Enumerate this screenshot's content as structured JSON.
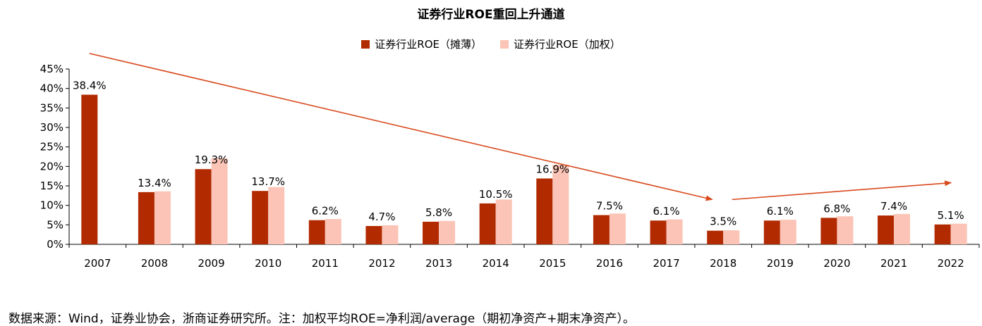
{
  "chart_data": {
    "type": "bar",
    "title": "证券行业ROE重回上升通道",
    "categories": [
      "2007",
      "2008",
      "2009",
      "2010",
      "2011",
      "2012",
      "2013",
      "2014",
      "2015",
      "2016",
      "2017",
      "2018",
      "2019",
      "2020",
      "2021",
      "2022"
    ],
    "series": [
      {
        "name": "证券行业ROE（摊薄）",
        "color": "#b22a00",
        "values": [
          38.4,
          13.4,
          19.3,
          13.7,
          6.2,
          4.7,
          5.8,
          10.5,
          16.9,
          7.5,
          6.1,
          3.5,
          6.1,
          6.8,
          7.4,
          5.1
        ]
      },
      {
        "name": "证券行业ROE（加权）",
        "color": "#fbc4b6",
        "values": [
          null,
          13.6,
          22.1,
          14.7,
          6.5,
          4.9,
          6.0,
          11.5,
          20.4,
          7.9,
          6.4,
          3.6,
          6.3,
          7.2,
          7.8,
          5.3
        ]
      }
    ],
    "data_labels": [
      "38.4%",
      "13.4%",
      "19.3%",
      "13.7%",
      "6.2%",
      "4.7%",
      "5.8%",
      "10.5%",
      "16.9%",
      "7.5%",
      "6.1%",
      "3.5%",
      "6.1%",
      "6.8%",
      "7.4%",
      "5.1%"
    ],
    "y_ticks": [
      "0%",
      "5%",
      "10%",
      "15%",
      "20%",
      "25%",
      "30%",
      "35%",
      "40%",
      "45%"
    ],
    "ylim": [
      0,
      45
    ],
    "xlabel": "",
    "ylabel": "",
    "legend_position": "top-center",
    "grid": false,
    "annotations": {
      "arrow_color": "#d84a1e",
      "trend_arrows": [
        {
          "from": [
            "2007",
            49.0
          ],
          "to": [
            "2018",
            11.5
          ]
        },
        {
          "from": [
            "2018",
            11.5
          ],
          "to": [
            "2022",
            15.8
          ]
        }
      ]
    }
  },
  "source_note": "数据来源：Wind，证券业协会，浙商证券研究所。注：加权平均ROE=净利润/average（期初净资产+期末净资产）。"
}
